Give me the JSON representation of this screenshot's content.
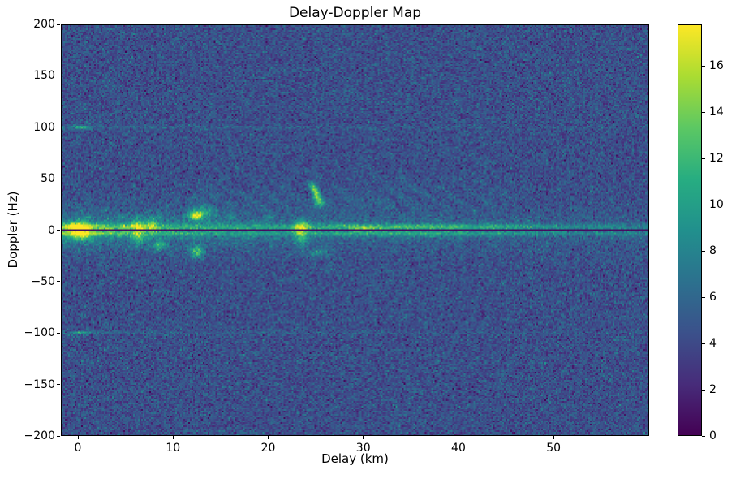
{
  "figure": {
    "background": "#ffffff"
  },
  "chart_data": {
    "type": "heatmap",
    "title": "Delay-Doppler Map",
    "xlabel": "Delay (km)",
    "ylabel": "Doppler (Hz)",
    "xlim": [
      -1.8,
      60.0
    ],
    "ylim": [
      -200,
      200
    ],
    "zlim": [
      0,
      17.8
    ],
    "x_ticks": [
      0,
      10,
      20,
      30,
      40,
      50
    ],
    "x_tick_labels": [
      "0",
      "10",
      "20",
      "30",
      "40",
      "50"
    ],
    "y_ticks": [
      200,
      150,
      100,
      50,
      0,
      -50,
      -100,
      -150,
      -200
    ],
    "y_tick_labels": [
      "200",
      "150",
      "100",
      "50",
      "0",
      "−50",
      "−100",
      "−150",
      "−200"
    ],
    "grid": false,
    "legend": null,
    "colorbar": {
      "ticks": [
        0,
        2,
        4,
        6,
        8,
        10,
        12,
        14,
        16
      ],
      "tick_labels": [
        "0",
        "2",
        "4",
        "6",
        "8",
        "10",
        "12",
        "14",
        "16"
      ]
    },
    "colormap": {
      "name": "viridis",
      "stops": [
        [
          0.0,
          "#440154"
        ],
        [
          0.125,
          "#472c7a"
        ],
        [
          0.25,
          "#3b518b"
        ],
        [
          0.375,
          "#2c718e"
        ],
        [
          0.5,
          "#21908d"
        ],
        [
          0.625,
          "#27ad81"
        ],
        [
          0.75,
          "#5cc863"
        ],
        [
          0.875,
          "#aadc32"
        ],
        [
          1.0,
          "#fde725"
        ]
      ]
    },
    "noise": {
      "mean": 4.4,
      "std": 1.25,
      "seed": 1234
    },
    "features": {
      "zero_doppler_dark_line": {
        "doppler_hz": 0,
        "halfwidth_hz": 1.0,
        "value": 0.5
      },
      "zero_ridges": {
        "offset_hz": 3.2,
        "sigma_hz": 1.9,
        "base": 2.6,
        "near_amp": 4.0,
        "near_decay_km": 8,
        "mid_amp": 3.6,
        "mid_center_km": 36,
        "mid_sigma_km": 8,
        "below_factor": 0.75
      },
      "clutter_bands": [
        {
          "center_hz": 0,
          "sigma_hz": 14,
          "amp": 2.6,
          "decay_km": 25,
          "floor": 0.6
        },
        {
          "center_hz": 0,
          "sigma_hz": 6,
          "amp": 2.0,
          "decay_km": 20,
          "floor": 0.5
        }
      ],
      "sideband_lines": [
        {
          "doppler_hz": 100,
          "amp": 1.7,
          "decay_km": 40,
          "sigma_hz": 1.3
        },
        {
          "doppler_hz": -100,
          "amp": 1.7,
          "decay_km": 40,
          "sigma_hz": 1.3
        }
      ],
      "dashed_line": {
        "doppler_hz": 13,
        "sigma_hz": 1.6,
        "amp": 2.4,
        "delay_max_km": 21,
        "period_km": 1.9
      },
      "wavy_band": {
        "doppler_hz": 33,
        "sigma_hz": 9,
        "amp": 0.95,
        "delay_min_km": 12,
        "delay_max_km": 46
      },
      "blobs": [
        {
          "d": 0.2,
          "f": 3,
          "sd": 0.7,
          "sf": 3.5,
          "a": 8
        },
        {
          "d": 0.3,
          "f": -5,
          "sd": 0.8,
          "sf": 4,
          "a": 6
        },
        {
          "d": 0.3,
          "f": 100,
          "sd": 0.6,
          "sf": 1.4,
          "a": 5
        },
        {
          "d": 0.3,
          "f": -100,
          "sd": 0.6,
          "sf": 1.4,
          "a": 5
        },
        {
          "d": 6.3,
          "f": 4,
          "sd": 0.5,
          "sf": 5,
          "a": 6
        },
        {
          "d": 6.4,
          "f": -9,
          "sd": 0.5,
          "sf": 4,
          "a": 4.5
        },
        {
          "d": 7.8,
          "f": 6,
          "sd": 0.45,
          "sf": 5,
          "a": 5
        },
        {
          "d": 8.5,
          "f": -15,
          "sd": 0.5,
          "sf": 3.5,
          "a": 5.5
        },
        {
          "d": 12.4,
          "f": 14,
          "sd": 0.6,
          "sf": 3,
          "a": 9
        },
        {
          "d": 13.3,
          "f": 18,
          "sd": 1.0,
          "sf": 4,
          "a": 4.5
        },
        {
          "d": 12.5,
          "f": -21,
          "sd": 0.5,
          "sf": 4.5,
          "a": 7.5
        },
        {
          "d": 23.5,
          "f": 3,
          "sd": 0.5,
          "sf": 5,
          "a": 8
        },
        {
          "d": 23.5,
          "f": -9,
          "sd": 0.5,
          "sf": 5,
          "a": 4.5
        },
        {
          "d": 25.3,
          "f": -22,
          "sd": 0.9,
          "sf": 3,
          "a": 3.5
        },
        {
          "d": 30.0,
          "f": 1.5,
          "sd": 1.0,
          "sf": 2,
          "a": 4.5
        },
        {
          "d": 24.7,
          "f": 44,
          "sd": 0.3,
          "sf": 2.2,
          "a": 5.5
        },
        {
          "d": 24.85,
          "f": 40,
          "sd": 0.3,
          "sf": 2.2,
          "a": 7
        },
        {
          "d": 25.0,
          "f": 36,
          "sd": 0.3,
          "sf": 2.2,
          "a": 7.5
        },
        {
          "d": 25.15,
          "f": 32,
          "sd": 0.3,
          "sf": 2.2,
          "a": 7
        },
        {
          "d": 25.35,
          "f": 28,
          "sd": 0.35,
          "sf": 2.2,
          "a": 6
        },
        {
          "d": 25.5,
          "f": 25,
          "sd": 0.45,
          "sf": 2,
          "a": 4.5
        }
      ]
    }
  }
}
